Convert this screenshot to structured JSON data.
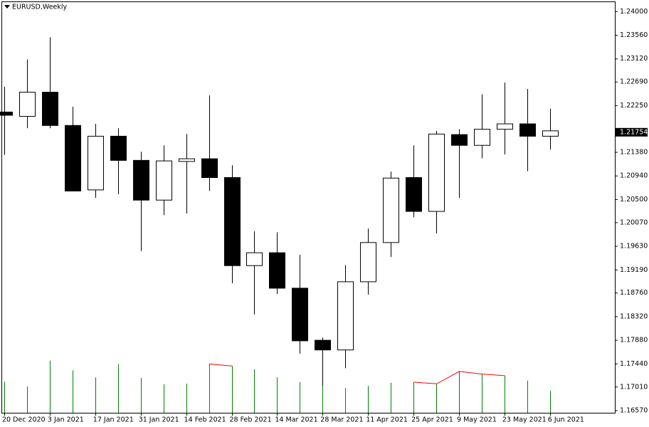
{
  "chart_data": {
    "type": "candlestick",
    "title": "EURUSD,Weekly",
    "categories": [
      "20 Dec 2020",
      null,
      "3 Jan 2021",
      null,
      "17 Jan 2021",
      null,
      "31 Jan 2021",
      null,
      "14 Feb 2021",
      null,
      "28 Feb 2021",
      null,
      "14 Mar 2021",
      null,
      "28 Mar 2021",
      null,
      "11 Apr 2021",
      null,
      "25 Apr 2021",
      null,
      "9 May 2021",
      null,
      "23 May 2021",
      null,
      "6 Jun 2021"
    ],
    "open": [
      1.2213,
      1.2205,
      1.225,
      1.2188,
      1.2068,
      1.2168,
      1.2123,
      1.2049,
      1.2121,
      1.2126,
      1.2091,
      1.1927,
      1.1951,
      1.1885,
      1.1788,
      1.177,
      1.1897,
      1.197,
      1.2091,
      1.2028,
      1.2171,
      1.2151,
      1.2181,
      1.2191,
      1.2168
    ],
    "high": [
      1.226,
      1.2311,
      1.2352,
      1.2223,
      1.2191,
      1.2183,
      1.2139,
      1.2151,
      1.2172,
      1.2244,
      1.2114,
      1.1991,
      1.1989,
      1.1947,
      1.1793,
      1.1928,
      1.1996,
      1.2102,
      1.2151,
      1.2178,
      1.2181,
      1.2246,
      1.2268,
      1.2256,
      1.2219
    ],
    "low": [
      1.2133,
      1.2183,
      1.2183,
      1.2066,
      1.2053,
      1.206,
      1.1954,
      1.2021,
      1.2024,
      1.2066,
      1.1894,
      1.1836,
      1.1874,
      1.1763,
      1.1703,
      1.1736,
      1.1873,
      1.1943,
      1.2017,
      1.1987,
      1.2053,
      1.2127,
      1.2134,
      1.2103,
      1.2143
    ],
    "close": [
      1.2207,
      1.225,
      1.2188,
      1.2066,
      1.2168,
      1.2123,
      1.2049,
      1.2122,
      1.2126,
      1.2091,
      1.1927,
      1.1951,
      1.1885,
      1.1787,
      1.177,
      1.1897,
      1.197,
      1.209,
      1.2028,
      1.2172,
      1.2151,
      1.2181,
      1.2191,
      1.2168,
      1.2178
    ],
    "indicator": {
      "color": "#008000",
      "highlight_color": "#ff0000",
      "values": [
        1.1711,
        1.1702,
        1.175,
        1.1732,
        1.1719,
        1.1744,
        1.1718,
        1.1706,
        1.1707,
        1.1744,
        1.174,
        1.1734,
        1.1719,
        1.171,
        1.1705,
        1.1699,
        1.1703,
        1.1709,
        1.171,
        1.1707,
        1.173,
        1.1725,
        1.1722,
        1.1713,
        1.1694
      ],
      "highlight": [
        false,
        false,
        false,
        false,
        false,
        false,
        false,
        false,
        false,
        true,
        true,
        false,
        false,
        false,
        false,
        false,
        false,
        false,
        true,
        true,
        true,
        true,
        true,
        false,
        false
      ]
    },
    "current_price": 1.21754,
    "ylim": [
      1.1653,
      1.2419
    ],
    "yticks": [
      {
        "value": 1.24,
        "label": "1.24000"
      },
      {
        "value": 1.2356,
        "label": "1.23560"
      },
      {
        "value": 1.2312,
        "label": "1.23120"
      },
      {
        "value": 1.2269,
        "label": "1.22690"
      },
      {
        "value": 1.2225,
        "label": "1.22250"
      },
      {
        "value": 1.2138,
        "label": "1.21380"
      },
      {
        "value": 1.2094,
        "label": "1.20940"
      },
      {
        "value": 1.205,
        "label": "1.20500"
      },
      {
        "value": 1.2007,
        "label": "1.20070"
      },
      {
        "value": 1.1963,
        "label": "1.19630"
      },
      {
        "value": 1.1919,
        "label": "1.19190"
      },
      {
        "value": 1.1876,
        "label": "1.18760"
      },
      {
        "value": 1.1832,
        "label": "1.18320"
      },
      {
        "value": 1.1788,
        "label": "1.17880"
      },
      {
        "value": 1.1744,
        "label": "1.17440"
      },
      {
        "value": 1.1701,
        "label": "1.17010"
      },
      {
        "value": 1.1657,
        "label": "1.16570"
      }
    ]
  }
}
